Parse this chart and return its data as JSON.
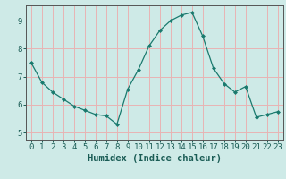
{
  "x": [
    0,
    1,
    2,
    3,
    4,
    5,
    6,
    7,
    8,
    9,
    10,
    11,
    12,
    13,
    14,
    15,
    16,
    17,
    18,
    19,
    20,
    21,
    22,
    23
  ],
  "y": [
    7.5,
    6.8,
    6.45,
    6.2,
    5.95,
    5.8,
    5.65,
    5.6,
    5.3,
    6.55,
    7.25,
    8.1,
    8.65,
    9.0,
    9.2,
    9.3,
    8.45,
    7.3,
    6.75,
    6.45,
    6.65,
    5.55,
    5.65,
    5.75
  ],
  "line_color": "#1a7a6e",
  "marker": "D",
  "marker_size": 2.0,
  "bg_color": "#ceeae7",
  "grid_color": "#e8b4b4",
  "xlabel": "Humidex (Indice chaleur)",
  "xlim": [
    -0.5,
    23.5
  ],
  "ylim": [
    4.75,
    9.55
  ],
  "yticks": [
    5,
    6,
    7,
    8,
    9
  ],
  "xticks": [
    0,
    1,
    2,
    3,
    4,
    5,
    6,
    7,
    8,
    9,
    10,
    11,
    12,
    13,
    14,
    15,
    16,
    17,
    18,
    19,
    20,
    21,
    22,
    23
  ],
  "tick_fontsize": 6.5,
  "label_fontsize": 7.5,
  "spine_color": "#555555"
}
